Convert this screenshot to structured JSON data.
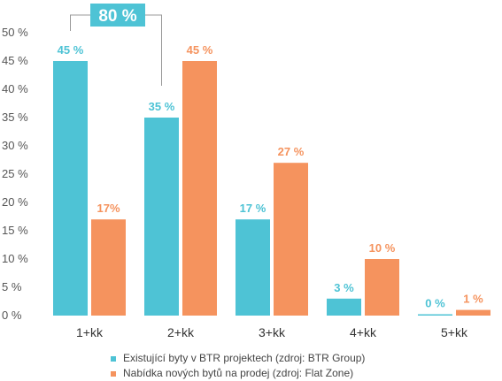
{
  "chart_data": {
    "type": "bar",
    "title": "",
    "xlabel": "",
    "ylabel": "",
    "ylim": [
      0,
      50
    ],
    "yticks": [
      "0 %",
      "5 %",
      "10 %",
      "15 %",
      "20 %",
      "25 %",
      "30 %",
      "35 %",
      "40 %",
      "45 %",
      "50 %"
    ],
    "categories": [
      "1+kk",
      "2+kk",
      "3+kk",
      "4+kk",
      "5+kk"
    ],
    "series": [
      {
        "name": "Existující byty v BTR projektech (zdroj: BTR Group)",
        "color": "#4ec3d5",
        "values": [
          45,
          35,
          17,
          3,
          0
        ],
        "labels": [
          "45 %",
          "35 %",
          "17 %",
          "3 %",
          "0 %"
        ]
      },
      {
        "name": "Nabídka nových bytů na prodej (zdroj: Flat Zone)",
        "color": "#f5935e",
        "values": [
          17,
          45,
          27,
          10,
          1
        ],
        "labels": [
          "17%",
          "45 %",
          "27 %",
          "10 %",
          "1 %"
        ]
      }
    ],
    "annotation": {
      "text": "80 %",
      "spans": [
        "1+kk",
        "2+kk"
      ],
      "color": "#4ec3d5"
    },
    "grid": false,
    "legend_position": "bottom"
  }
}
